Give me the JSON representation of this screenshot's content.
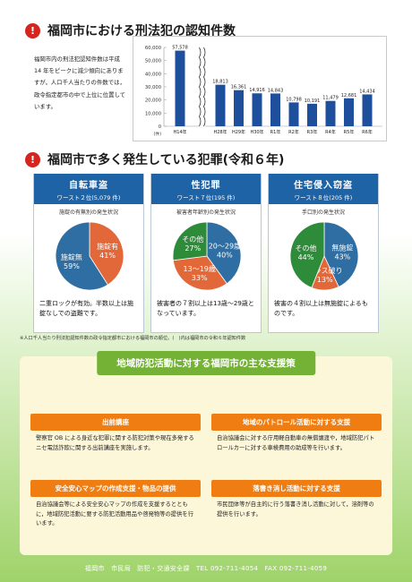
{
  "section1": {
    "title": "福岡市における刑法犯の認知件数",
    "intro": "福岡市内の刑法犯認知件数は平成 14 年をピークに減少傾向にありますが，人口千人当たりの件数では，政令指定都市の中で上位に位置しています。"
  },
  "chart_data": {
    "type": "bar",
    "categories": [
      "H14年",
      "H28年",
      "H29年",
      "H30年",
      "R1年",
      "R2年",
      "R3年",
      "R4年",
      "R5年",
      "R6年"
    ],
    "values": [
      57578,
      18813,
      16361,
      14916,
      14843,
      10798,
      10191,
      11479,
      12681,
      14434
    ],
    "value_labels": [
      "57,578",
      "18,813",
      "16,361",
      "14,916",
      "14,843",
      "10,798",
      "10,191",
      "11,479",
      "12,681",
      "14,434"
    ],
    "y_ticks": [
      "60,000",
      "50,000",
      "40,000",
      "30,000",
      "20,000",
      "10,000",
      "0"
    ],
    "y_unit": "(件)",
    "ylim": [
      0,
      60000
    ],
    "axis_break_after_first": true,
    "bar_color": "#1e4f9c"
  },
  "section2": {
    "title": "福岡市で多く発生している犯罪(令和６年)",
    "cards": [
      {
        "title": "自転車盗",
        "subtitle": "ワースト２位(5,079 件)",
        "chart_title": "施錠の有無別の発生状況",
        "note": "二重ロックが有効。半数以上は施錠なしでの盗難です。",
        "slices": [
          {
            "label": "施錠有",
            "value": 41,
            "pct": "41%",
            "color": "#e2683a"
          },
          {
            "label": "施錠無",
            "value": 59,
            "pct": "59%",
            "color": "#2f6ea2"
          }
        ]
      },
      {
        "title": "性犯罪",
        "subtitle": "ワースト７位(195 件)",
        "chart_title": "被害者年齢別の発生状況",
        "note": "被害者の７割以上は13歳～29歳となっています。",
        "slices": [
          {
            "label": "20～29歳",
            "value": 40,
            "pct": "40%",
            "color": "#2f6ea2"
          },
          {
            "label": "13～19歳",
            "value": 33,
            "pct": "33%",
            "color": "#e2683a"
          },
          {
            "label": "その他",
            "value": 27,
            "pct": "27%",
            "color": "#2e8b3a"
          }
        ]
      },
      {
        "title": "住宅侵入窃盗",
        "subtitle": "ワースト８位(205 件)",
        "chart_title": "手口別の発生状況",
        "note": "被害の４割以上は無施錠によるものです。",
        "slices": [
          {
            "label": "無施錠",
            "value": 43,
            "pct": "43%",
            "color": "#2f6ea2"
          },
          {
            "label": "ガラス破り",
            "value": 13,
            "pct": "13%",
            "color": "#e2683a"
          },
          {
            "label": "その他",
            "value": 44,
            "pct": "44%",
            "color": "#2e8b3a"
          }
        ]
      }
    ],
    "footnote": "※人口千人当たり刑法犯認知件数の政令指定都市における福岡市の順位。(　)内は福岡市の令和６年認知件数"
  },
  "support": {
    "title": "地域防犯活動に対する福岡市の主な支援策",
    "items": [
      {
        "title": "出前講座",
        "body": "警察官 OB による身近な犯罪に関する防犯対策や現在多発するニセ電話詐欺に関する出前講座を実施します。"
      },
      {
        "title": "地域のパトロール活動に対する支援",
        "body": "自治協議会に対する庁用軽自動車の無償譲渡や，地域防犯パトロールカーに対する車検費用の助成等を行います。"
      },
      {
        "title": "安全安心マップの作成支援・物品の提供",
        "body": "自治協議会等による安全安心マップの作成を支援するとともに，地域防犯活動に要する防犯活動用品や啓発物等の提供を行います。"
      },
      {
        "title": "落書き消し活動に対する支援",
        "body": "市民団体等が自主的に行う落書き消し活動に対して，溶剤等の提供を行います。"
      }
    ]
  },
  "footer": {
    "text": "福岡市　市民局　防犯・交通安全課　TEL 092-711-4054　FAX 092-711-4059"
  }
}
